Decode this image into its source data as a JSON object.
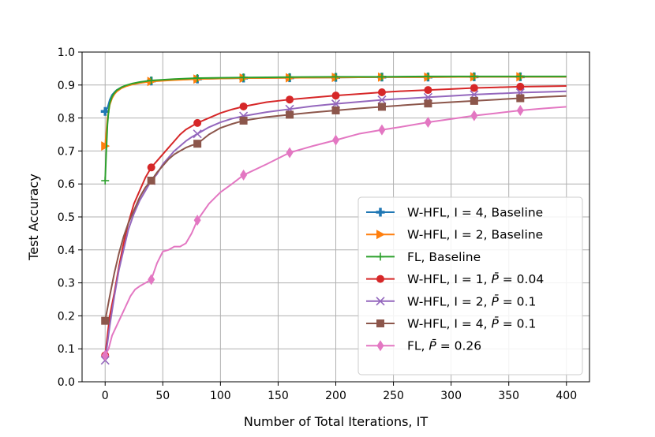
{
  "chart_data": {
    "type": "line",
    "xlabel": "Number of Total Iterations, IT",
    "ylabel": "Test Accuracy",
    "xlim": [
      -20,
      420
    ],
    "ylim": [
      0.0,
      1.0
    ],
    "x_ticks": [
      0,
      50,
      100,
      150,
      200,
      250,
      300,
      350,
      400
    ],
    "x_tick_labels": [
      "0",
      "50",
      "100",
      "150",
      "200",
      "250",
      "300",
      "350",
      "400"
    ],
    "y_ticks": [
      0.0,
      0.1,
      0.2,
      0.3,
      0.4,
      0.5,
      0.6,
      0.7,
      0.8,
      0.9,
      1.0
    ],
    "y_tick_labels": [
      "0.0",
      "0.1",
      "0.2",
      "0.3",
      "0.4",
      "0.5",
      "0.6",
      "0.7",
      "0.8",
      "0.9",
      "1.0"
    ],
    "grid": true,
    "legend_position": "lower-right",
    "series": [
      {
        "name": "W-HFL, I = 4, Baseline",
        "legend_parts": [
          "W-HFL, I = 4, Baseline"
        ],
        "color": "#1f77b4",
        "marker": "plus-filled",
        "x": [
          0,
          2,
          4,
          6,
          8,
          10,
          14,
          18,
          24,
          30,
          40,
          60,
          80,
          100,
          120,
          160,
          200,
          240,
          280,
          320,
          360,
          400
        ],
        "y": [
          0.82,
          0.83,
          0.855,
          0.87,
          0.878,
          0.885,
          0.893,
          0.898,
          0.903,
          0.907,
          0.912,
          0.916,
          0.918,
          0.92,
          0.921,
          0.922,
          0.923,
          0.924,
          0.924,
          0.925,
          0.925,
          0.925
        ],
        "marker_x": [
          0,
          40,
          80,
          120,
          160,
          200,
          240,
          280,
          320,
          360
        ]
      },
      {
        "name": "W-HFL, I = 2, Baseline",
        "legend_parts": [
          "W-HFL, I = 2, Baseline"
        ],
        "color": "#ff7f0e",
        "marker": "triangle-right",
        "x": [
          0,
          2,
          4,
          6,
          8,
          10,
          14,
          18,
          24,
          30,
          40,
          60,
          80,
          100,
          120,
          160,
          200,
          240,
          280,
          320,
          360,
          400
        ],
        "y": [
          0.715,
          0.8,
          0.84,
          0.86,
          0.872,
          0.88,
          0.89,
          0.896,
          0.902,
          0.906,
          0.911,
          0.915,
          0.918,
          0.92,
          0.921,
          0.922,
          0.923,
          0.924,
          0.924,
          0.925,
          0.925,
          0.925
        ],
        "marker_x": [
          0,
          40,
          80,
          120,
          160,
          200,
          240,
          280,
          320,
          360
        ]
      },
      {
        "name": "FL, Baseline",
        "legend_parts": [
          "FL, Baseline"
        ],
        "color": "#2ca02c",
        "marker": "plus",
        "x": [
          0,
          1,
          2,
          3,
          4,
          6,
          8,
          10,
          14,
          18,
          24,
          30,
          40,
          60,
          80,
          100,
          120,
          160,
          200,
          240,
          280,
          320,
          360,
          400
        ],
        "y": [
          0.61,
          0.7,
          0.78,
          0.82,
          0.845,
          0.865,
          0.876,
          0.884,
          0.893,
          0.899,
          0.905,
          0.909,
          0.914,
          0.918,
          0.921,
          0.922,
          0.923,
          0.924,
          0.925,
          0.925,
          0.926,
          0.926,
          0.926,
          0.926
        ],
        "marker_x": [
          0,
          40,
          80,
          120,
          160,
          200,
          240,
          280,
          320,
          360
        ]
      },
      {
        "name": "W-HFL, I = 1, P̄ = 0.04",
        "legend_parts": [
          "W-HFL, I = 1, ",
          "P̄",
          " = 0.04"
        ],
        "color": "#d62728",
        "marker": "circle",
        "x": [
          0,
          4,
          8,
          12,
          16,
          20,
          25,
          30,
          35,
          40,
          45,
          50,
          55,
          60,
          65,
          70,
          75,
          80,
          90,
          100,
          110,
          120,
          140,
          160,
          180,
          200,
          220,
          240,
          260,
          280,
          300,
          320,
          340,
          360,
          380,
          400
        ],
        "y": [
          0.08,
          0.2,
          0.27,
          0.35,
          0.42,
          0.48,
          0.54,
          0.58,
          0.62,
          0.65,
          0.67,
          0.69,
          0.71,
          0.73,
          0.75,
          0.765,
          0.775,
          0.785,
          0.8,
          0.815,
          0.826,
          0.835,
          0.848,
          0.856,
          0.862,
          0.868,
          0.873,
          0.878,
          0.882,
          0.885,
          0.888,
          0.891,
          0.893,
          0.895,
          0.896,
          0.897
        ],
        "marker_x": [
          0,
          40,
          80,
          120,
          160,
          200,
          240,
          280,
          320,
          360
        ]
      },
      {
        "name": "W-HFL, I = 2, P̄ = 0.1",
        "legend_parts": [
          "W-HFL, I = 2, ",
          "P̄",
          " = 0.1"
        ],
        "color": "#9467bd",
        "marker": "x",
        "x": [
          0,
          4,
          8,
          12,
          16,
          20,
          25,
          30,
          35,
          40,
          45,
          50,
          55,
          60,
          65,
          70,
          75,
          80,
          90,
          100,
          110,
          120,
          140,
          160,
          180,
          200,
          220,
          240,
          260,
          280,
          300,
          320,
          340,
          360,
          380,
          400
        ],
        "y": [
          0.065,
          0.17,
          0.26,
          0.34,
          0.4,
          0.46,
          0.51,
          0.55,
          0.58,
          0.61,
          0.63,
          0.66,
          0.68,
          0.7,
          0.715,
          0.73,
          0.742,
          0.752,
          0.772,
          0.787,
          0.798,
          0.806,
          0.818,
          0.827,
          0.836,
          0.843,
          0.849,
          0.855,
          0.859,
          0.863,
          0.867,
          0.871,
          0.874,
          0.877,
          0.879,
          0.881
        ],
        "marker_x": [
          0,
          40,
          80,
          120,
          160,
          200,
          240,
          280,
          320,
          360
        ]
      },
      {
        "name": "W-HFL, I = 4, P̄ = 0.1",
        "legend_parts": [
          "W-HFL, I = 4, ",
          "P̄",
          " = 0.1"
        ],
        "color": "#8c564b",
        "marker": "square",
        "x": [
          0,
          4,
          8,
          12,
          16,
          20,
          25,
          30,
          35,
          40,
          45,
          50,
          55,
          60,
          65,
          70,
          75,
          80,
          90,
          100,
          110,
          120,
          140,
          160,
          180,
          200,
          220,
          240,
          260,
          280,
          300,
          320,
          340,
          360,
          380,
          400
        ],
        "y": [
          0.185,
          0.26,
          0.33,
          0.39,
          0.44,
          0.48,
          0.52,
          0.56,
          0.59,
          0.61,
          0.635,
          0.655,
          0.675,
          0.69,
          0.7,
          0.71,
          0.717,
          0.722,
          0.75,
          0.77,
          0.782,
          0.792,
          0.803,
          0.81,
          0.817,
          0.823,
          0.829,
          0.834,
          0.839,
          0.844,
          0.848,
          0.852,
          0.856,
          0.86,
          0.864,
          0.867
        ],
        "marker_x": [
          0,
          40,
          80,
          120,
          160,
          200,
          240,
          280,
          320,
          360
        ]
      },
      {
        "name": "FL, P̄ = 0.26",
        "legend_parts": [
          "FL, ",
          "P̄",
          " = 0.26"
        ],
        "color": "#e377c2",
        "marker": "diamond",
        "x": [
          0,
          3,
          6,
          10,
          14,
          18,
          22,
          26,
          30,
          35,
          40,
          45,
          50,
          55,
          60,
          65,
          70,
          75,
          80,
          90,
          100,
          110,
          120,
          140,
          160,
          180,
          200,
          220,
          240,
          260,
          280,
          300,
          320,
          340,
          360,
          380,
          400
        ],
        "y": [
          0.08,
          0.1,
          0.14,
          0.17,
          0.2,
          0.23,
          0.26,
          0.28,
          0.29,
          0.3,
          0.31,
          0.36,
          0.395,
          0.4,
          0.41,
          0.41,
          0.42,
          0.45,
          0.49,
          0.54,
          0.575,
          0.6,
          0.627,
          0.66,
          0.695,
          0.715,
          0.733,
          0.752,
          0.764,
          0.775,
          0.787,
          0.797,
          0.807,
          0.815,
          0.823,
          0.829,
          0.834
        ],
        "marker_x": [
          0,
          40,
          80,
          120,
          160,
          200,
          240,
          280,
          320,
          360
        ]
      }
    ]
  }
}
